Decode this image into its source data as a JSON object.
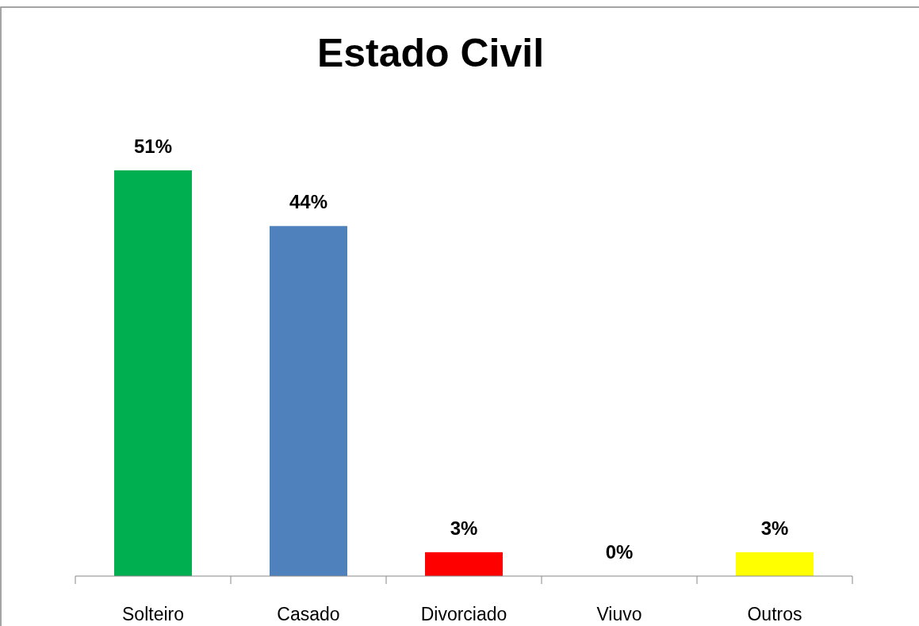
{
  "chart_data": {
    "type": "bar",
    "title": "Estado Civil",
    "categories": [
      "Solteiro",
      "Casado",
      "Divorciado",
      "Viuvo",
      "Outros"
    ],
    "values": [
      51,
      44,
      3,
      0,
      3
    ],
    "value_labels": [
      "51%",
      "44%",
      "3%",
      "0%",
      "3%"
    ],
    "colors": [
      "#00b050",
      "#4f81bd",
      "#ff0000",
      "#4f81bd",
      "#ffff00"
    ],
    "grid": false,
    "legend": false
  }
}
